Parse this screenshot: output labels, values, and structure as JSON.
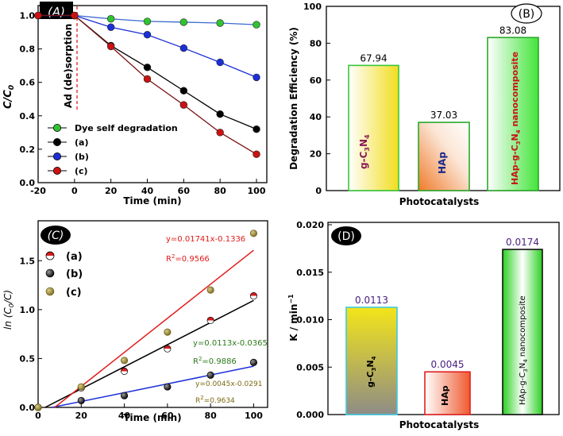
{
  "chart_data": [
    {
      "panel": "(A)",
      "type": "line",
      "xlabel": "Time (min)",
      "ylabel": "C/C0",
      "xlim": [
        -20,
        100
      ],
      "ylim": [
        0.0,
        1.05
      ],
      "xticks": [
        -20,
        0,
        20,
        40,
        60,
        80,
        100
      ],
      "yticks": [
        0.0,
        0.2,
        0.4,
        0.6,
        0.8,
        1.0
      ],
      "legend_position": "bottom-left",
      "annotation": "Ad (de)sorption",
      "series": [
        {
          "name": "Dye self degradation",
          "color": "#2fc42f",
          "x": [
            -20,
            0,
            20,
            40,
            60,
            80,
            100
          ],
          "y": [
            1.0,
            1.0,
            0.98,
            0.965,
            0.96,
            0.955,
            0.945
          ]
        },
        {
          "name": "(a)",
          "color": "#000000",
          "x": [
            -20,
            0,
            20,
            40,
            60,
            80,
            100
          ],
          "y": [
            1.0,
            1.0,
            0.82,
            0.69,
            0.55,
            0.41,
            0.32
          ]
        },
        {
          "name": "(b)",
          "color": "#1b2fd8",
          "x": [
            -20,
            0,
            20,
            40,
            60,
            80,
            100
          ],
          "y": [
            1.0,
            1.0,
            0.93,
            0.885,
            0.805,
            0.72,
            0.63
          ]
        },
        {
          "name": "(c)",
          "color": "#cc1111",
          "x": [
            -20,
            0,
            20,
            40,
            60,
            80,
            100
          ],
          "y": [
            1.0,
            1.0,
            0.815,
            0.62,
            0.465,
            0.3,
            0.17
          ]
        }
      ]
    },
    {
      "panel": "(B)",
      "type": "bar",
      "xlabel": "Photocatalysts",
      "ylabel": "Degradation Efficiency (%)",
      "ylim": [
        0,
        100
      ],
      "yticks": [
        0,
        20,
        40,
        60,
        80,
        100
      ],
      "categories": [
        "g-C3N4",
        "HAp",
        "HAp-g-C3N4 nanocomposite"
      ],
      "values": [
        67.94,
        37.03,
        83.08
      ],
      "value_labels": [
        "67.94",
        "37.03",
        "83.08"
      ]
    },
    {
      "panel": "(C)",
      "type": "scatter",
      "xlabel": "Time (min)",
      "ylabel": "ln (C0/C)",
      "xlim": [
        0,
        105
      ],
      "ylim": [
        0.0,
        1.9
      ],
      "xticks": [
        0,
        20,
        40,
        60,
        80,
        100
      ],
      "yticks": [
        0.0,
        0.5,
        1.0,
        1.5
      ],
      "legend_position": "top-left",
      "series": [
        {
          "name": "(a)",
          "color": "#000000",
          "x": [
            0,
            20,
            40,
            60,
            80,
            100
          ],
          "y": [
            0.0,
            0.2,
            0.37,
            0.6,
            0.89,
            1.14
          ],
          "fit": {
            "slope": 0.0113,
            "intercept": -0.0365
          }
        },
        {
          "name": "(b)",
          "color": "#1b2fd8",
          "x": [
            0,
            20,
            40,
            60,
            80,
            100
          ],
          "y": [
            0.0,
            0.07,
            0.12,
            0.21,
            0.33,
            0.46
          ],
          "fit": {
            "slope": 0.0045,
            "intercept": -0.0291
          }
        },
        {
          "name": "(c)",
          "color": "#e01b1b",
          "x": [
            0,
            20,
            40,
            60,
            80,
            100
          ],
          "y": [
            0.0,
            0.21,
            0.48,
            0.77,
            1.2,
            1.78
          ],
          "fit": {
            "slope": 0.01741,
            "intercept": -0.1336
          }
        }
      ],
      "annotations": [
        {
          "text": "y=0.01741x-0.1336",
          "color": "#e01b1b"
        },
        {
          "text": "R2=0.9566",
          "color": "#e01b1b"
        },
        {
          "text": "y=0.0113x-0.0365",
          "color": "#2a7a1a"
        },
        {
          "text": "R2=0.9886",
          "color": "#2a7a1a"
        },
        {
          "text": "y=0.0045x-0.0291",
          "color": "#7a6a10"
        },
        {
          "text": "R2=0.9634",
          "color": "#7a6a10"
        }
      ]
    },
    {
      "panel": "(D)",
      "type": "bar",
      "xlabel": "Photocatalysts",
      "ylabel": "K / min-1",
      "ylim": [
        0.0,
        0.02
      ],
      "yticks": [
        0.0,
        0.005,
        0.01,
        0.015,
        0.02
      ],
      "categories": [
        "g-C3N4",
        "HAp",
        "HAp-g-C3N4 nanocomposite"
      ],
      "values": [
        0.0113,
        0.0045,
        0.0174
      ],
      "value_labels": [
        "0.0113",
        "0.0045",
        "0.0174"
      ]
    }
  ]
}
